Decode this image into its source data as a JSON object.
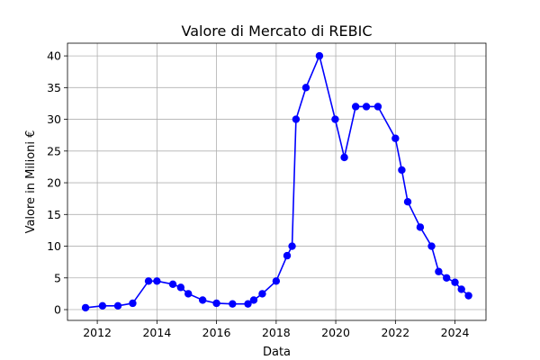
{
  "chart_data": {
    "type": "line",
    "title": "Valore di Mercato di REBIC",
    "xlabel": "Data",
    "ylabel": "Valore in Milioni €",
    "x_axis_type": "date",
    "xlim": [
      "2011-01-01",
      "2025-01-15"
    ],
    "ylim": [
      -1.7,
      42
    ],
    "grid": true,
    "x_ticks": [
      {
        "date": "2012-01-01",
        "label": "2012"
      },
      {
        "date": "2014-01-01",
        "label": "2014"
      },
      {
        "date": "2016-01-01",
        "label": "2016"
      },
      {
        "date": "2018-01-01",
        "label": "2018"
      },
      {
        "date": "2020-01-01",
        "label": "2020"
      },
      {
        "date": "2022-01-01",
        "label": "2022"
      },
      {
        "date": "2024-01-01",
        "label": "2024"
      }
    ],
    "y_ticks": [
      0,
      5,
      10,
      15,
      20,
      25,
      30,
      35,
      40
    ],
    "series": [
      {
        "color": "#0000ff",
        "marker": "circle",
        "points": [
          {
            "x": "2011-08-10",
            "y": 0.3
          },
          {
            "x": "2012-03-05",
            "y": 0.6
          },
          {
            "x": "2012-09-10",
            "y": 0.6
          },
          {
            "x": "2013-03-10",
            "y": 1.0
          },
          {
            "x": "2013-09-20",
            "y": 4.5
          },
          {
            "x": "2014-01-01",
            "y": 4.5
          },
          {
            "x": "2014-07-15",
            "y": 4.0
          },
          {
            "x": "2014-10-20",
            "y": 3.5
          },
          {
            "x": "2015-01-20",
            "y": 2.5
          },
          {
            "x": "2015-07-15",
            "y": 1.5
          },
          {
            "x": "2016-01-01",
            "y": 1.0
          },
          {
            "x": "2016-07-15",
            "y": 0.9
          },
          {
            "x": "2017-01-20",
            "y": 0.9
          },
          {
            "x": "2017-04-01",
            "y": 1.5
          },
          {
            "x": "2017-07-15",
            "y": 2.5
          },
          {
            "x": "2018-01-01",
            "y": 4.5
          },
          {
            "x": "2018-05-15",
            "y": 8.5
          },
          {
            "x": "2018-07-15",
            "y": 10.0
          },
          {
            "x": "2018-09-01",
            "y": 30.0
          },
          {
            "x": "2019-01-01",
            "y": 35.0
          },
          {
            "x": "2019-06-15",
            "y": 40.0
          },
          {
            "x": "2019-12-25",
            "y": 30.0
          },
          {
            "x": "2020-04-15",
            "y": 24.0
          },
          {
            "x": "2020-09-01",
            "y": 32.0
          },
          {
            "x": "2021-01-10",
            "y": 32.0
          },
          {
            "x": "2021-06-01",
            "y": 32.0
          },
          {
            "x": "2022-01-01",
            "y": 27.0
          },
          {
            "x": "2022-03-20",
            "y": 22.0
          },
          {
            "x": "2022-06-01",
            "y": 17.0
          },
          {
            "x": "2022-11-01",
            "y": 13.0
          },
          {
            "x": "2023-03-20",
            "y": 10.0
          },
          {
            "x": "2023-06-15",
            "y": 6.0
          },
          {
            "x": "2023-09-20",
            "y": 5.0
          },
          {
            "x": "2024-01-01",
            "y": 4.3
          },
          {
            "x": "2024-03-20",
            "y": 3.2
          },
          {
            "x": "2024-06-15",
            "y": 2.2
          }
        ]
      }
    ]
  }
}
